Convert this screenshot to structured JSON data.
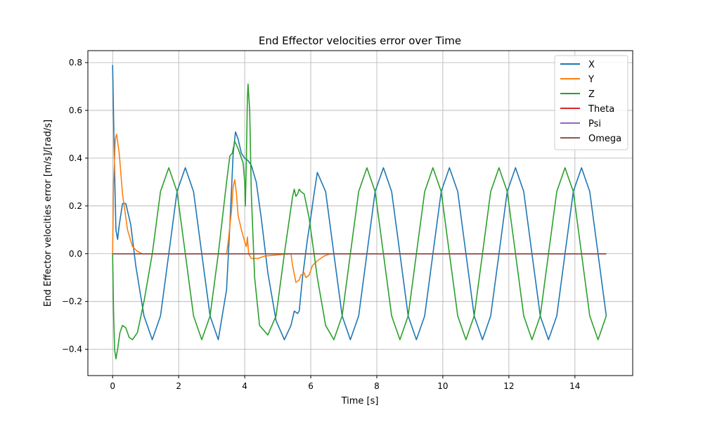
{
  "chart_data": {
    "type": "line",
    "title": "End Effector velocities error over Time",
    "xlabel": "Time [s]",
    "ylabel": "End Effector velocities error [m/s]/[rad/s]",
    "xlim": [
      -0.75,
      15.75
    ],
    "ylim": [
      -0.51,
      0.85
    ],
    "xticks": [
      0,
      2,
      4,
      6,
      8,
      10,
      12,
      14
    ],
    "yticks": [
      -0.4,
      -0.2,
      0.0,
      0.2,
      0.4,
      0.6,
      0.8
    ],
    "xtick_labels": [
      "0",
      "2",
      "4",
      "6",
      "8",
      "10",
      "12",
      "14"
    ],
    "ytick_labels": [
      "−0.4",
      "−0.2",
      "0.0",
      "0.2",
      "0.4",
      "0.6",
      "0.8"
    ],
    "grid": true,
    "legend_position": "top-right",
    "series": [
      {
        "name": "X",
        "color": "#1f77b4",
        "x": [
          0,
          0.05,
          0.1,
          0.15,
          0.2,
          0.3,
          0.4,
          0.55,
          0.7,
          0.95,
          1.2,
          1.45,
          1.7,
          1.95,
          2.2,
          2.45,
          2.7,
          2.95,
          3.2,
          3.45,
          3.55,
          3.65,
          3.72,
          3.8,
          3.9,
          4.0,
          4.1,
          4.2,
          4.35,
          4.5,
          4.7,
          4.95,
          5.2,
          5.4,
          5.5,
          5.6,
          5.65,
          5.75,
          5.9,
          6.0,
          6.1,
          6.2,
          6.45,
          6.7,
          6.95,
          7.2,
          7.45,
          7.7,
          7.95,
          8.2,
          8.45,
          8.7,
          8.95,
          9.2,
          9.45,
          9.7,
          9.95,
          10.2,
          10.45,
          10.7,
          10.95,
          11.2,
          11.45,
          11.7,
          11.95,
          12.2,
          12.45,
          12.7,
          12.95,
          13.2,
          13.45,
          13.7,
          13.95,
          14.2,
          14.45,
          14.7,
          14.95
        ],
        "y": [
          0.79,
          0.4,
          0.1,
          0.06,
          0.12,
          0.21,
          0.21,
          0.12,
          -0.05,
          -0.26,
          -0.36,
          -0.26,
          0.0,
          0.26,
          0.36,
          0.26,
          0.0,
          -0.26,
          -0.36,
          -0.15,
          0.12,
          0.42,
          0.51,
          0.48,
          0.42,
          0.4,
          0.39,
          0.37,
          0.3,
          0.15,
          -0.08,
          -0.28,
          -0.36,
          -0.3,
          -0.24,
          -0.25,
          -0.24,
          -0.1,
          0.06,
          0.15,
          0.25,
          0.34,
          0.26,
          0.0,
          -0.26,
          -0.36,
          -0.26,
          0.0,
          0.26,
          0.36,
          0.26,
          0.0,
          -0.26,
          -0.36,
          -0.26,
          0.0,
          0.26,
          0.36,
          0.26,
          0.0,
          -0.26,
          -0.36,
          -0.26,
          0.0,
          0.26,
          0.36,
          0.26,
          0.0,
          -0.26,
          -0.36,
          -0.26,
          0.0,
          0.26,
          0.36,
          0.26,
          0.0,
          -0.26
        ]
      },
      {
        "name": "Y",
        "color": "#ff7f0e",
        "x": [
          0,
          0.03,
          0.08,
          0.12,
          0.2,
          0.3,
          0.45,
          0.6,
          0.75,
          0.9,
          1.1,
          3.45,
          3.5,
          3.6,
          3.65,
          3.7,
          3.75,
          3.8,
          3.9,
          4.0,
          4.05,
          4.08,
          4.12,
          4.2,
          4.4,
          4.6,
          5.35,
          5.4,
          5.45,
          5.55,
          5.65,
          5.7,
          5.8,
          5.85,
          5.95,
          6.05,
          6.2,
          6.4,
          6.6,
          14.95
        ],
        "y": [
          0.0,
          0.3,
          0.48,
          0.5,
          0.42,
          0.25,
          0.1,
          0.03,
          0.01,
          0.0,
          0.0,
          0.0,
          0.05,
          0.18,
          0.28,
          0.31,
          0.25,
          0.16,
          0.1,
          0.05,
          0.03,
          0.07,
          0.0,
          -0.02,
          -0.02,
          -0.01,
          0.0,
          0.0,
          -0.05,
          -0.12,
          -0.11,
          -0.09,
          -0.08,
          -0.1,
          -0.09,
          -0.05,
          -0.03,
          -0.01,
          0.0,
          0.0
        ]
      },
      {
        "name": "Z",
        "color": "#2ca02c",
        "x": [
          0,
          0.03,
          0.06,
          0.1,
          0.15,
          0.22,
          0.3,
          0.4,
          0.5,
          0.6,
          0.75,
          0.95,
          1.2,
          1.45,
          1.7,
          1.95,
          2.2,
          2.45,
          2.7,
          2.95,
          3.2,
          3.45,
          3.55,
          3.62,
          3.7,
          3.8,
          3.95,
          4.0,
          4.02,
          4.05,
          4.08,
          4.1,
          4.15,
          4.2,
          4.3,
          4.45,
          4.7,
          4.95,
          5.2,
          5.45,
          5.5,
          5.55,
          5.6,
          5.65,
          5.7,
          5.8,
          5.95,
          6.2,
          6.45,
          6.7,
          6.95,
          7.2,
          7.45,
          7.7,
          7.95,
          8.2,
          8.45,
          8.7,
          8.95,
          9.2,
          9.45,
          9.7,
          9.95,
          10.2,
          10.45,
          10.7,
          10.95,
          11.2,
          11.45,
          11.7,
          11.95,
          12.2,
          12.45,
          12.7,
          12.95,
          13.2,
          13.45,
          13.7,
          13.95,
          14.2,
          14.45,
          14.7,
          14.95
        ],
        "y": [
          0.0,
          -0.25,
          -0.4,
          -0.44,
          -0.4,
          -0.33,
          -0.3,
          -0.31,
          -0.35,
          -0.36,
          -0.33,
          -0.2,
          0.0,
          0.26,
          0.36,
          0.26,
          0.0,
          -0.26,
          -0.36,
          -0.26,
          0.0,
          0.3,
          0.41,
          0.42,
          0.47,
          0.44,
          0.38,
          0.3,
          0.2,
          0.4,
          0.65,
          0.71,
          0.6,
          0.25,
          -0.1,
          -0.3,
          -0.34,
          -0.26,
          0.0,
          0.24,
          0.27,
          0.24,
          0.25,
          0.27,
          0.26,
          0.25,
          0.15,
          -0.1,
          -0.3,
          -0.36,
          -0.26,
          0.0,
          0.26,
          0.36,
          0.26,
          0.0,
          -0.26,
          -0.36,
          -0.26,
          0.0,
          0.26,
          0.36,
          0.26,
          0.0,
          -0.26,
          -0.36,
          -0.26,
          0.0,
          0.26,
          0.36,
          0.26,
          0.0,
          -0.26,
          -0.36,
          -0.26,
          0.0,
          0.26,
          0.36,
          0.26,
          0.0,
          -0.26,
          -0.36,
          -0.26
        ]
      },
      {
        "name": "Theta",
        "color": "#d62728",
        "x": [
          0,
          14.95
        ],
        "y": [
          0.0,
          0.0
        ]
      },
      {
        "name": "Psi",
        "color": "#9467bd",
        "x": [
          0,
          14.95
        ],
        "y": [
          0.0,
          0.0
        ]
      },
      {
        "name": "Omega",
        "color": "#8c564b",
        "x": [
          0,
          14.95
        ],
        "y": [
          0.0,
          0.0
        ]
      }
    ]
  }
}
